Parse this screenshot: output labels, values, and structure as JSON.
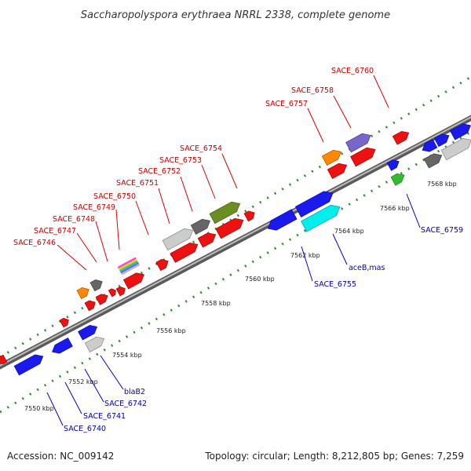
{
  "title": "Saccharopolyspora erythraea NRRL 2338, complete genome",
  "footer": {
    "accession": "Accession: NC_009142",
    "summary": "Topology: circular; Length: 8,212,805 bp; Genes: 7,259"
  },
  "ticks": [
    "7550 kbp",
    "7552 kbp",
    "7554 kbp",
    "7556 kbp",
    "7558 kbp",
    "7560 kbp",
    "7562 kbp",
    "7564 kbp",
    "7566 kbp",
    "7568 kbp"
  ],
  "labels_top": [
    "SACE_6746",
    "SACE_6747",
    "SACE_6748",
    "SACE_6749",
    "SACE_6750",
    "SACE_6751",
    "SACE_6752",
    "SACE_6753",
    "SACE_6754",
    "SACE_6757",
    "SACE_6758",
    "SACE_6760"
  ],
  "labels_bottom": [
    "SACE_6740",
    "SACE_6741",
    "SACE_6742",
    "blaB2",
    "SACE_6755",
    "aceB,mas",
    "SACE_6759"
  ],
  "colors": {
    "red": "#ee1111",
    "blue": "#1a1aee",
    "orange": "#ff8800",
    "gray_dark": "#666666",
    "gray_light": "#cccccc",
    "olive": "#6b8e23",
    "purple": "#7766cc",
    "green": "#33bb33",
    "cyan": "#00eeee",
    "tick_green": "#2e8b2e",
    "backbone": "#8a8a8a"
  }
}
